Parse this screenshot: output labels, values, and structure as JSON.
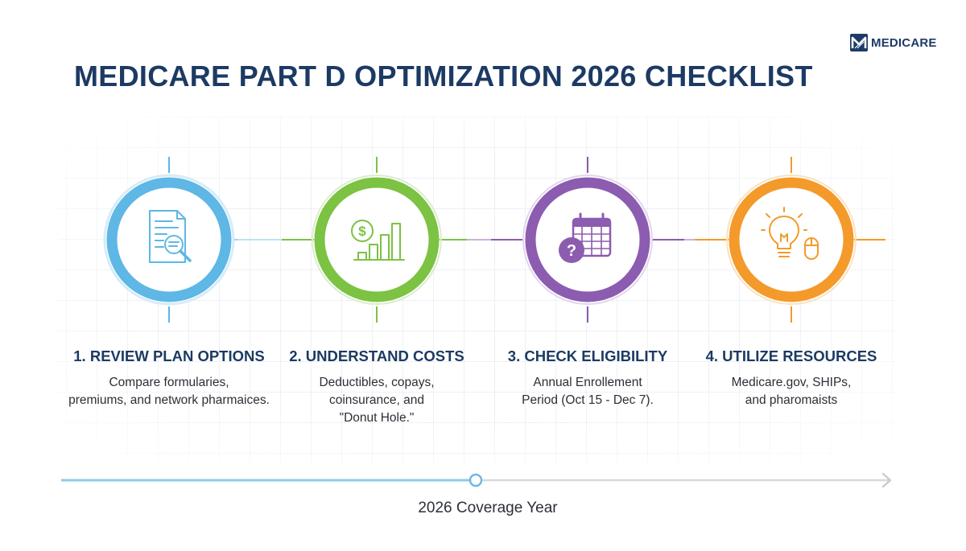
{
  "brand": {
    "logo_text": "MEDICARE",
    "logo_icon": "medicare-logo-icon",
    "color": "#1d3b66"
  },
  "title": "MEDICARE PART D OPTIMIZATION 2026 CHECKLIST",
  "colors": {
    "title": "#1c3a63",
    "step1": "#5eb7e5",
    "step2": "#7cc243",
    "step3": "#8c5cb0",
    "step4": "#f39a2b",
    "timeline_done": "#8ec9ea",
    "timeline_todo": "#d6d9de"
  },
  "steps": [
    {
      "title": "1. REVIEW PLAN OPTIONS",
      "icon": "document-search-icon",
      "desc": [
        "Compare formularies,",
        "premiums, and network pharmaices."
      ]
    },
    {
      "title": "2. UNDERSTAND COSTS",
      "icon": "dollar-chart-icon",
      "desc": [
        "Deductibles, copays,",
        "coinsurance, and",
        "\"Donut Hole.\""
      ]
    },
    {
      "title": "3. CHECK ELIGIBILITY",
      "icon": "calendar-question-icon",
      "desc": [
        "Annual Enrollement",
        "Period (Oct 15 - Dec 7)."
      ]
    },
    {
      "title": "4. UTILIZE RESOURCES",
      "icon": "lightbulb-mouse-icon",
      "desc": [
        "Medicare.gov, SHIPs,",
        "and pharomaists"
      ]
    }
  ],
  "timeline": {
    "label": "2026 Coverage Year",
    "progress": 0.5
  }
}
